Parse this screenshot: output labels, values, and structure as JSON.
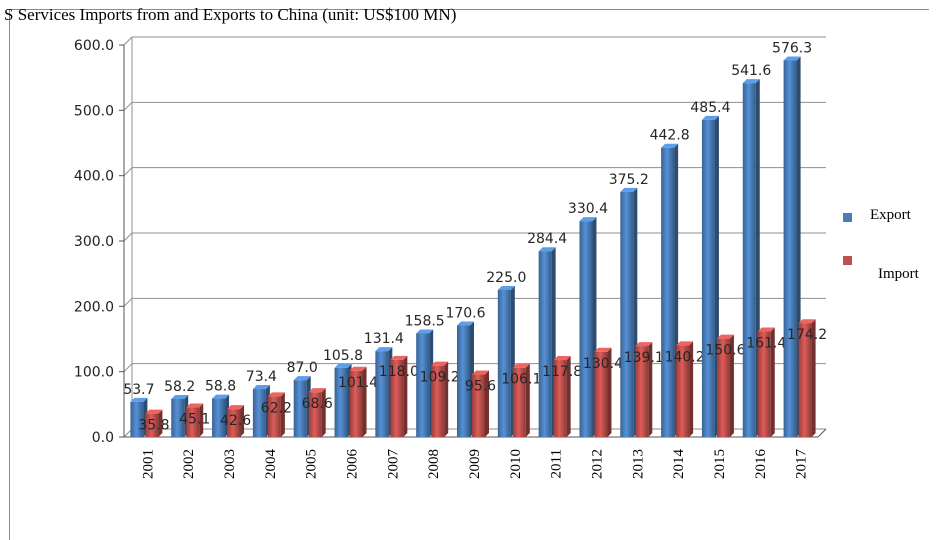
{
  "chart_data": {
    "type": "bar",
    "title": "S Services Imports from and Exports to China (unit: US$100 MN)",
    "xlabel": "",
    "ylabel": "",
    "ylim": [
      0,
      600
    ],
    "yticks": [
      "0.0",
      "100.0",
      "200.0",
      "300.0",
      "400.0",
      "500.0",
      "600.0"
    ],
    "ytick_values": [
      0,
      100,
      200,
      300,
      400,
      500,
      600
    ],
    "grid": true,
    "legend_position": "right",
    "categories": [
      "2001",
      "2002",
      "2003",
      "2004",
      "2005",
      "2006",
      "2007",
      "2008",
      "2009",
      "2010",
      "2011",
      "2012",
      "2013",
      "2014",
      "2015",
      "2016",
      "2017"
    ],
    "series": [
      {
        "name": "Export",
        "color": "#4a7ebb",
        "values": [
          53.7,
          58.2,
          58.8,
          73.4,
          87.0,
          105.8,
          131.4,
          158.5,
          170.6,
          225.0,
          284.4,
          330.4,
          375.2,
          442.8,
          485.4,
          541.6,
          576.3
        ],
        "labels": [
          "53.7",
          "58.2",
          "58.8",
          "73.4",
          "87.0",
          "105.8",
          "131.4",
          "158.5",
          "170.6",
          "225.0",
          "284.4",
          "330.4",
          "375.2",
          "442.8",
          "485.4",
          "541.6",
          "576.3"
        ]
      },
      {
        "name": "Import",
        "color": "#c0504d",
        "values": [
          35.8,
          45.1,
          42.6,
          62.2,
          68.6,
          101.4,
          118.0,
          109.2,
          95.6,
          106.1,
          117.8,
          130.4,
          139.1,
          140.2,
          150.6,
          161.4,
          174.2
        ],
        "labels": [
          "35.8",
          "45.1",
          "42.6",
          "62.2",
          "68.6",
          "101.4",
          "118.0",
          "109.2",
          "95.6",
          "106.1",
          "117.8",
          "130.4",
          "139.1",
          "140.2",
          "150.6",
          "161.4",
          "174.2"
        ]
      }
    ]
  }
}
